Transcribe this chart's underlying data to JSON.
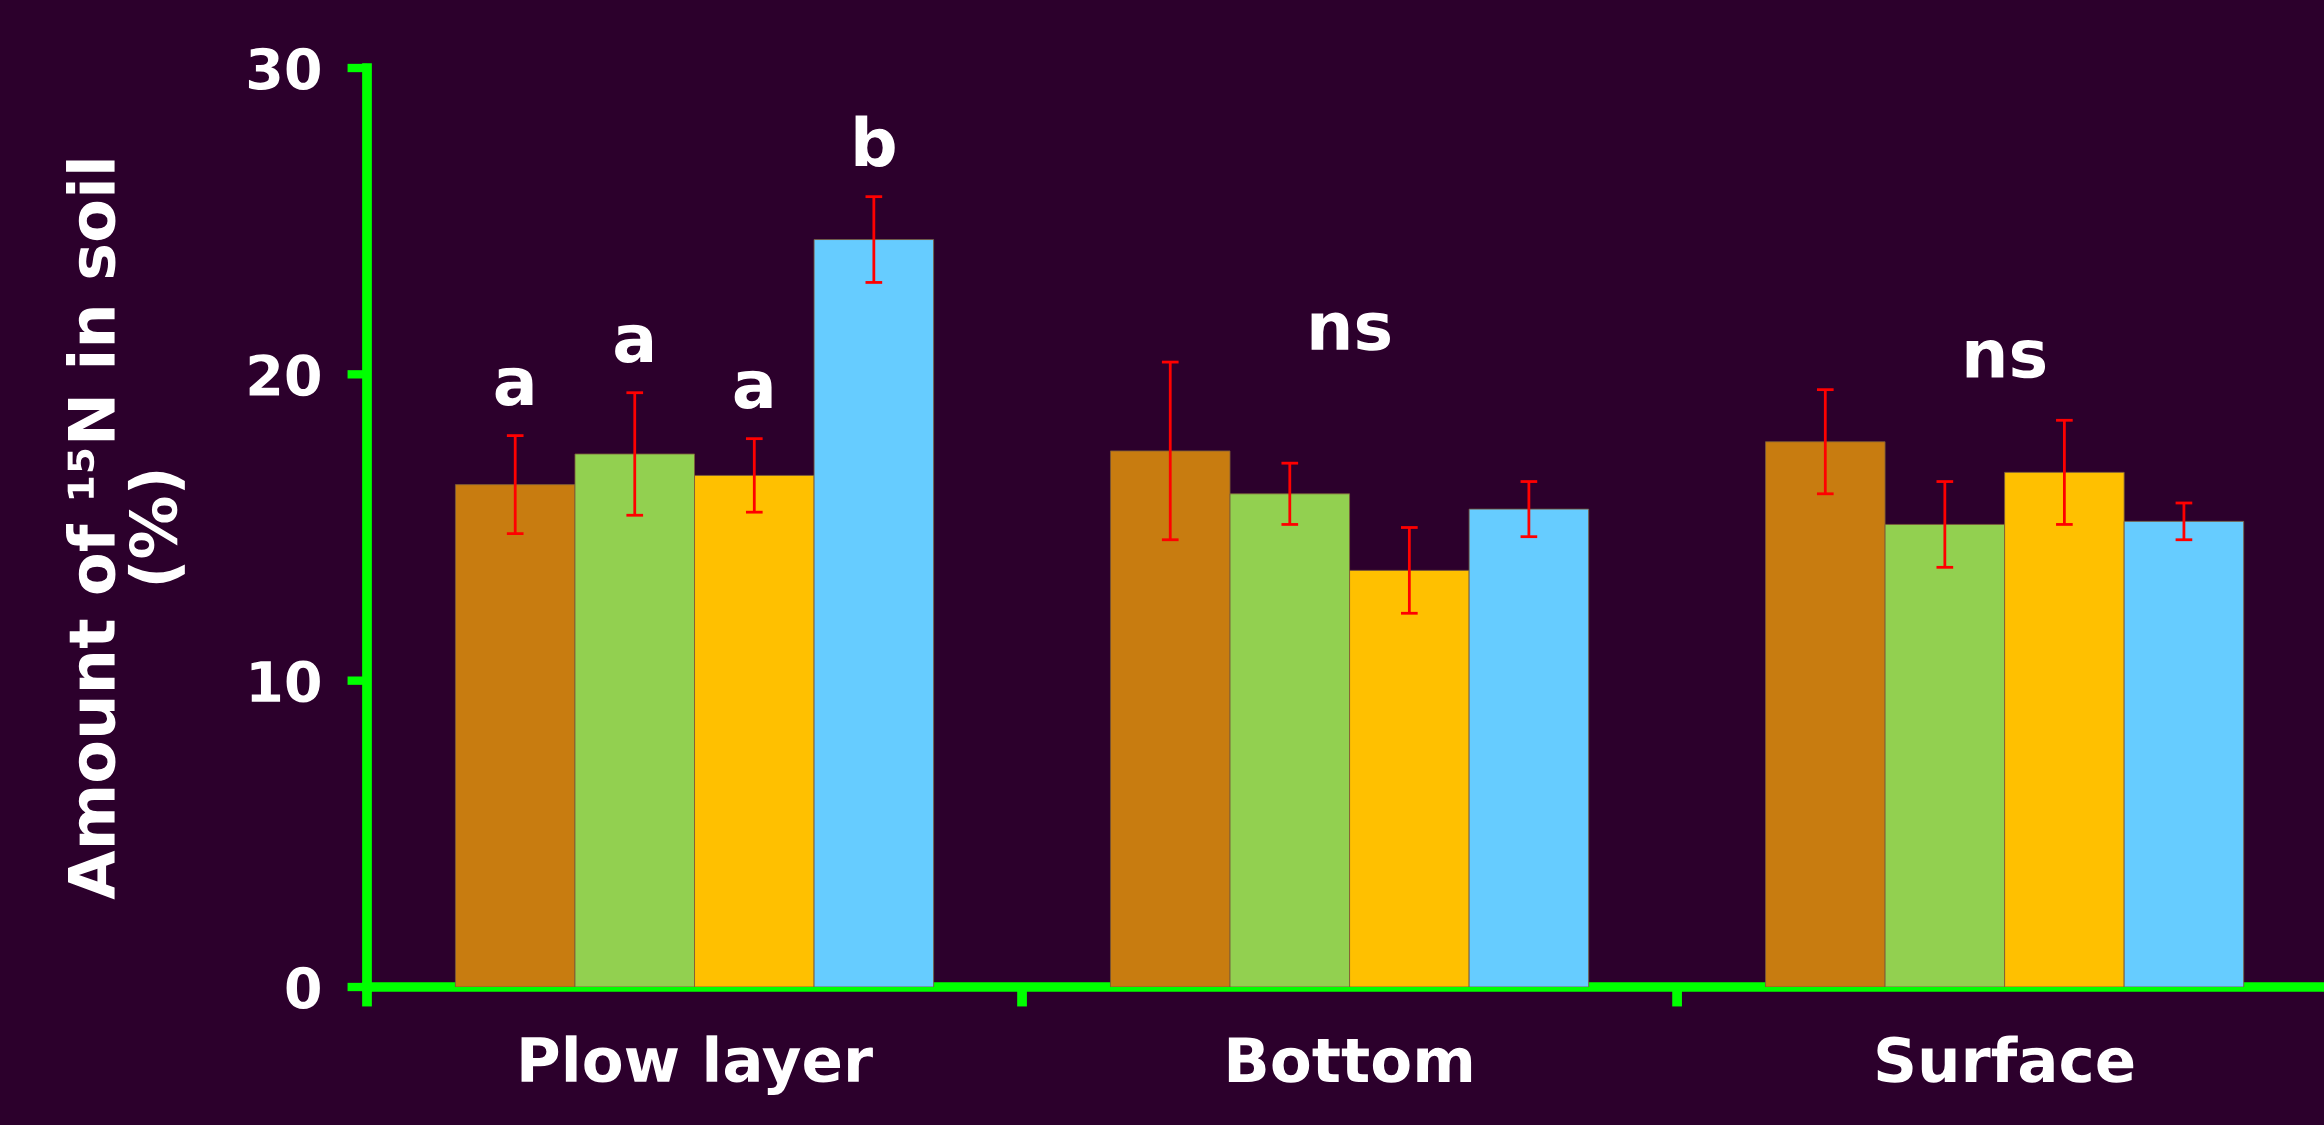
{
  "chart_data": {
    "type": "bar",
    "ylabel": "Amount of ¹⁵N in soil\n(%)",
    "categories": [
      "Plow layer",
      "Bottom",
      "Surface"
    ],
    "series": [
      {
        "color": "#c87c10",
        "values": [
          16.4,
          17.5,
          17.8
        ],
        "errors": [
          1.6,
          2.9,
          1.7
        ]
      },
      {
        "color": "#92d050",
        "values": [
          17.4,
          16.1,
          15.1
        ],
        "errors": [
          2.0,
          1.0,
          1.4
        ]
      },
      {
        "color": "#ffc000",
        "values": [
          16.7,
          13.6,
          16.8
        ],
        "errors": [
          1.2,
          1.4,
          1.7
        ]
      },
      {
        "color": "#66ccff",
        "values": [
          24.4,
          15.6,
          15.2
        ],
        "errors": [
          1.4,
          0.9,
          0.6
        ]
      }
    ],
    "ylim": [
      0,
      30
    ],
    "yticks": [
      0,
      10,
      20,
      30
    ],
    "grid": false,
    "legend": false,
    "annotations": [
      "a",
      "a",
      "a",
      "b",
      "ns",
      "ns"
    ]
  }
}
